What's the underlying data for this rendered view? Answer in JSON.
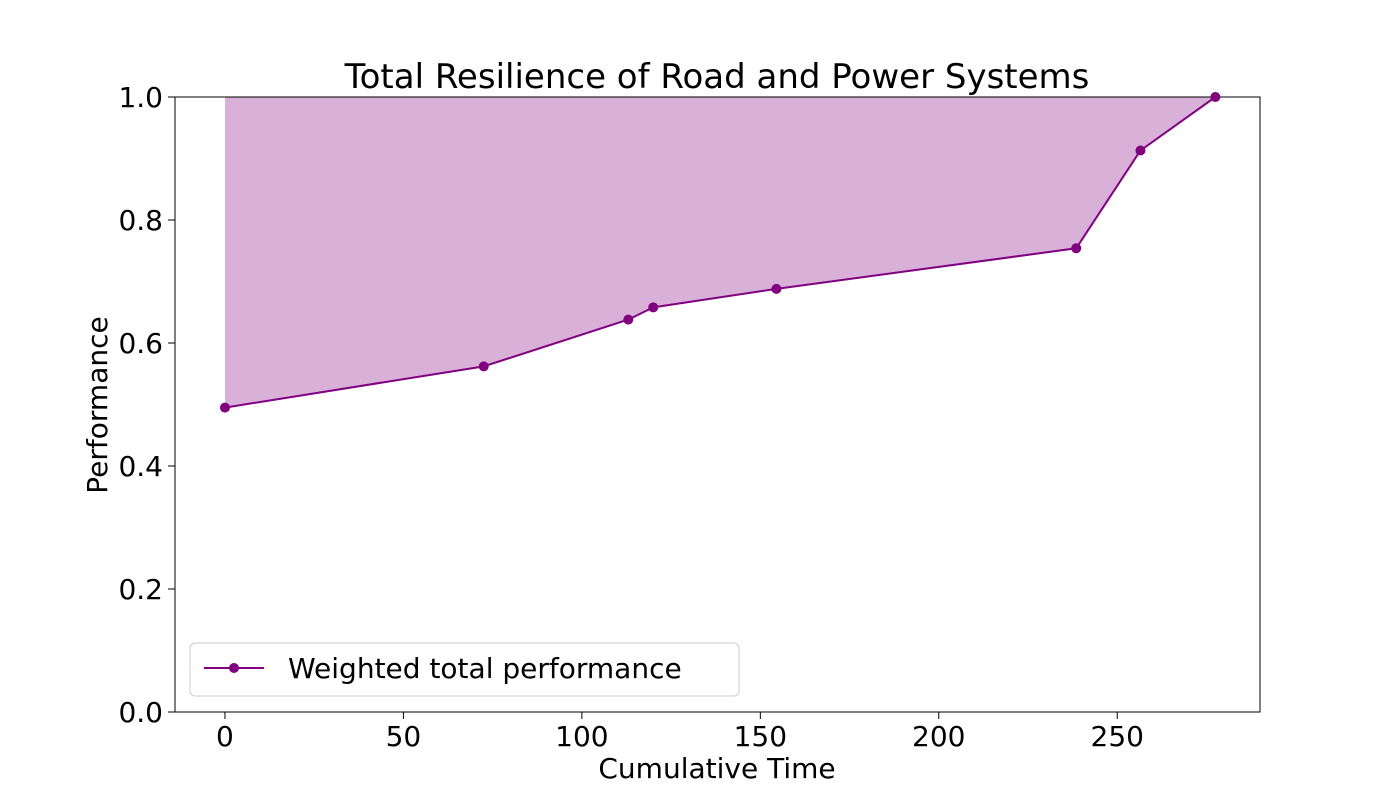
{
  "chart_data": {
    "type": "line",
    "title": "Total Resilience of Road and Power Systems",
    "xlabel": "Cumulative Time",
    "ylabel": "Performance",
    "xlim": [
      -14,
      290
    ],
    "ylim": [
      0.0,
      1.0
    ],
    "x_ticks": [
      0,
      50,
      100,
      150,
      200,
      250
    ],
    "x_tick_labels": [
      "0",
      "50",
      "100",
      "150",
      "200",
      "250"
    ],
    "y_ticks": [
      0.0,
      0.2,
      0.4,
      0.6,
      0.8,
      1.0
    ],
    "y_tick_labels": [
      "0.0",
      "0.2",
      "0.4",
      "0.6",
      "0.8",
      "1.0"
    ],
    "grid": false,
    "legend_position": "lower-left",
    "series": [
      {
        "name": "Weighted  total performance",
        "color": "#800080",
        "marker": "circle",
        "x": [
          0,
          72.5,
          113,
          120,
          154.5,
          238.5,
          256.5,
          277.5
        ],
        "y": [
          0.495,
          0.562,
          0.638,
          0.658,
          0.688,
          0.754,
          0.913,
          1.0
        ]
      }
    ],
    "fill_between": {
      "upper": 1.0,
      "color": "#d8b0d8",
      "description_series": "Weighted  total performance"
    }
  }
}
